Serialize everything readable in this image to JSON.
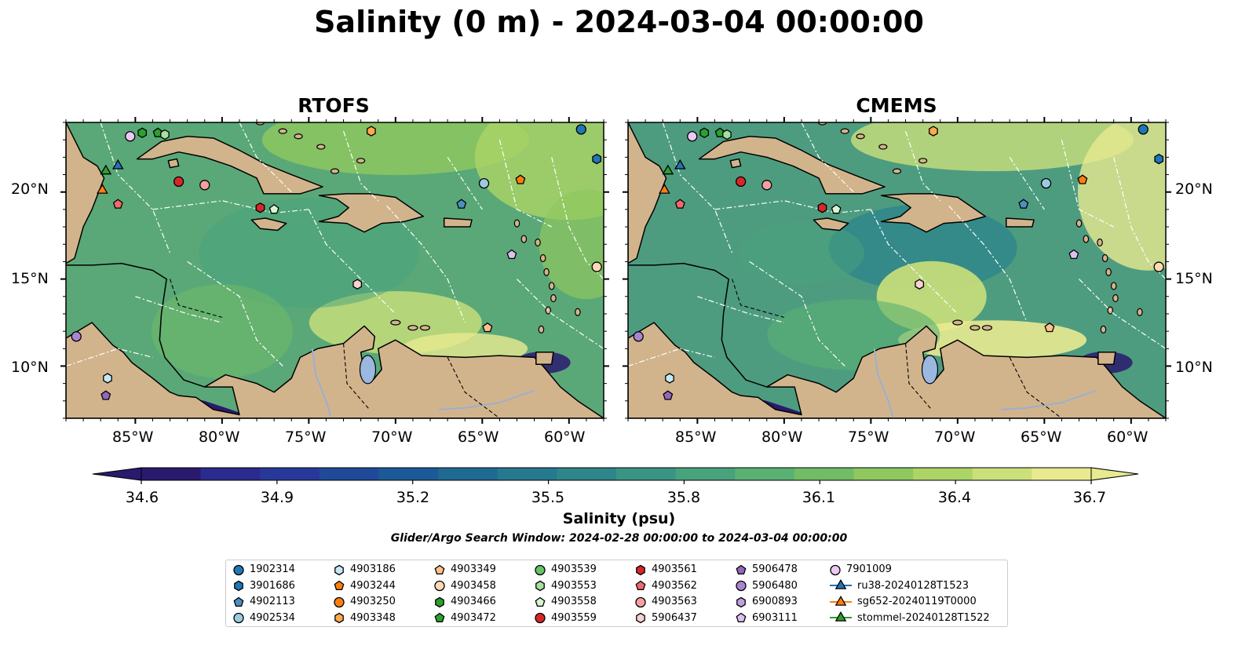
{
  "title": "Salinity (0 m) - 2024-03-04 00:00:00",
  "panels": [
    {
      "name": "RTOFS"
    },
    {
      "name": "CMEMS"
    }
  ],
  "lon_ticks": [
    "85°W",
    "80°W",
    "75°W",
    "70°W",
    "65°W",
    "60°W"
  ],
  "lat_ticks": [
    "20°N",
    "15°N",
    "10°N"
  ],
  "map_extent": {
    "lon_min": -89,
    "lon_max": -58,
    "lat_min": 7,
    "lat_max": 24
  },
  "colorbar": {
    "label": "Salinity (psu)",
    "ticks": [
      "34.6",
      "34.9",
      "35.2",
      "35.5",
      "35.8",
      "36.1",
      "36.4",
      "36.7"
    ],
    "vmin": 34.6,
    "vmax": 36.7,
    "colors": [
      "#2a1a6e",
      "#2b2a8e",
      "#27389a",
      "#1f4a9a",
      "#1b5a96",
      "#1f6a92",
      "#26788e",
      "#2e868a",
      "#3a9484",
      "#48a27c",
      "#5ab072",
      "#72bc66",
      "#8ec85e",
      "#acd466",
      "#cbe07a",
      "#e8ea90"
    ],
    "extend": "both"
  },
  "subtitle": "Glider/Argo Search Window: 2024-02-28 00:00:00 to 2024-03-04 00:00:00",
  "legend": [
    {
      "label": "1902314",
      "marker": "circle",
      "color": "#1f77b4"
    },
    {
      "label": "3901686",
      "marker": "hexagon",
      "color": "#1f77b4"
    },
    {
      "label": "4902113",
      "marker": "pentagon",
      "color": "#4a90c0"
    },
    {
      "label": "4902534",
      "marker": "circle",
      "color": "#9ecae1"
    },
    {
      "label": "4903186",
      "marker": "hexagon",
      "color": "#c6e8f5"
    },
    {
      "label": "4903244",
      "marker": "pentagon",
      "color": "#ff7f0e"
    },
    {
      "label": "4903250",
      "marker": "circle",
      "color": "#ff7f0e"
    },
    {
      "label": "4903348",
      "marker": "hexagon",
      "color": "#ffa94d"
    },
    {
      "label": "4903349",
      "marker": "pentagon",
      "color": "#ffc08a"
    },
    {
      "label": "4903458",
      "marker": "circle",
      "color": "#ffd9b3"
    },
    {
      "label": "4903466",
      "marker": "hexagon",
      "color": "#2ca02c"
    },
    {
      "label": "4903472",
      "marker": "pentagon",
      "color": "#2ca02c"
    },
    {
      "label": "4903539",
      "marker": "circle",
      "color": "#66c266"
    },
    {
      "label": "4903553",
      "marker": "hexagon",
      "color": "#a6e0a0"
    },
    {
      "label": "4903558",
      "marker": "pentagon",
      "color": "#d8f5d0"
    },
    {
      "label": "4903559",
      "marker": "circle",
      "color": "#d62728"
    },
    {
      "label": "4903561",
      "marker": "hexagon",
      "color": "#d62728"
    },
    {
      "label": "4903562",
      "marker": "pentagon",
      "color": "#f06a6a"
    },
    {
      "label": "4903563",
      "marker": "circle",
      "color": "#f4a0a0"
    },
    {
      "label": "5906437",
      "marker": "hexagon",
      "color": "#fbd0d0"
    },
    {
      "label": "5906478",
      "marker": "pentagon",
      "color": "#9467bd"
    },
    {
      "label": "5906480",
      "marker": "circle",
      "color": "#a985d0"
    },
    {
      "label": "6900893",
      "marker": "hexagon",
      "color": "#c0a0e0"
    },
    {
      "label": "6903111",
      "marker": "pentagon",
      "color": "#dcc0f0"
    },
    {
      "label": "7901009",
      "marker": "circle",
      "color": "#eec8f5"
    },
    {
      "label": "ru38-20240128T1523",
      "marker": "triangle-line",
      "color": "#1f77b4"
    },
    {
      "label": "sg652-20240119T0000",
      "marker": "triangle-line",
      "color": "#ff7f0e"
    },
    {
      "label": "stommel-20240128T1522",
      "marker": "triangle-line",
      "color": "#2ca02c"
    }
  ],
  "observations": [
    {
      "id": "1902314",
      "lon": -59.3,
      "lat": 23.6
    },
    {
      "id": "3901686",
      "lon": -58.4,
      "lat": 21.9
    },
    {
      "id": "4902113",
      "lon": -66.2,
      "lat": 19.3
    },
    {
      "id": "4902534",
      "lon": -64.9,
      "lat": 20.5
    },
    {
      "id": "4903186",
      "lon": -86.6,
      "lat": 9.3
    },
    {
      "id": "4903244",
      "lon": -62.8,
      "lat": 20.7
    },
    {
      "id": "4903348",
      "lon": -71.4,
      "lat": 23.5
    },
    {
      "id": "4903349",
      "lon": -64.7,
      "lat": 12.2
    },
    {
      "id": "4903458",
      "lon": -58.4,
      "lat": 15.7
    },
    {
      "id": "4903466",
      "lon": -84.6,
      "lat": 23.4
    },
    {
      "id": "4903472",
      "lon": -83.7,
      "lat": 23.4
    },
    {
      "id": "4903553",
      "lon": -83.3,
      "lat": 23.3
    },
    {
      "id": "4903558",
      "lon": -77.0,
      "lat": 19.0
    },
    {
      "id": "4903559",
      "lon": -82.5,
      "lat": 20.6
    },
    {
      "id": "4903561",
      "lon": -77.8,
      "lat": 19.1
    },
    {
      "id": "4903562",
      "lon": -86.0,
      "lat": 19.3
    },
    {
      "id": "4903563",
      "lon": -81.0,
      "lat": 20.4
    },
    {
      "id": "5906437",
      "lon": -72.2,
      "lat": 14.7
    },
    {
      "id": "5906478",
      "lon": -86.7,
      "lat": 8.3
    },
    {
      "id": "5906480",
      "lon": -88.4,
      "lat": 11.7
    },
    {
      "id": "6903111",
      "lon": -63.3,
      "lat": 16.4
    },
    {
      "id": "7901009",
      "lon": -85.3,
      "lat": 23.2
    },
    {
      "id": "ru38-20240128T1523",
      "lon": -86.0,
      "lat": 21.5,
      "type": "triangle"
    },
    {
      "id": "sg652-20240119T0000",
      "lon": -86.9,
      "lat": 20.1,
      "type": "triangle"
    },
    {
      "id": "stommel-20240128T1522",
      "lon": -86.7,
      "lat": 21.2,
      "type": "triangle"
    }
  ]
}
